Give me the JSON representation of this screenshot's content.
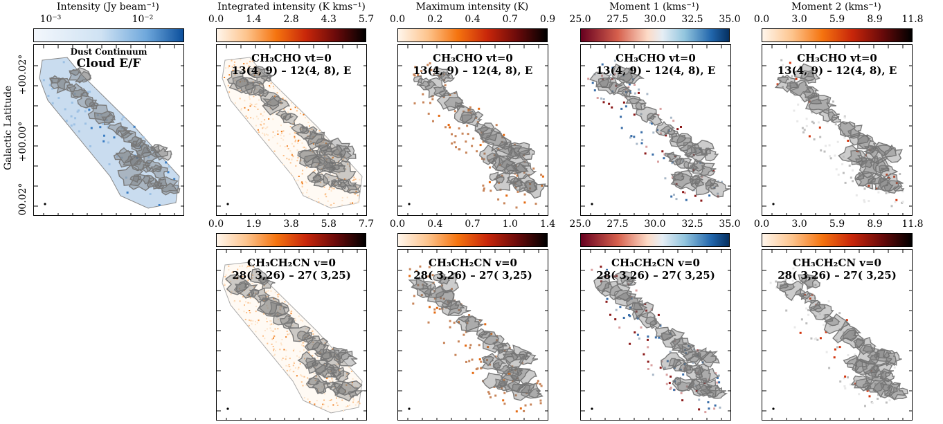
{
  "colorbars": {
    "dust": {
      "title": "Intensity (Jy beam⁻¹)",
      "ticks": [
        "10⁻³",
        "10⁻²"
      ]
    },
    "integrated": {
      "title": "Integrated intensity (K kms⁻¹)",
      "ticks_top": [
        "0.0",
        "1.4",
        "2.8",
        "4.3",
        "5.7"
      ],
      "ticks_bottom": [
        "0.0",
        "1.9",
        "3.8",
        "5.8",
        "7.7"
      ]
    },
    "maximum": {
      "title": "Maximum intensity (K)",
      "ticks_top": [
        "0.0",
        "0.2",
        "0.4",
        "0.7",
        "0.9"
      ],
      "ticks_bottom": [
        "0.0",
        "0.4",
        "0.7",
        "1.0",
        "1.4"
      ]
    },
    "moment1": {
      "title": "Moment 1 (kms⁻¹)",
      "ticks_top": [
        "25.0",
        "27.5",
        "30.0",
        "32.5",
        "35.0"
      ],
      "ticks_bottom": [
        "25.0",
        "27.5",
        "30.0",
        "32.5",
        "35.0"
      ]
    },
    "moment2": {
      "title": "Moment 2 (kms⁻¹)",
      "ticks_top": [
        "0.0",
        "3.0",
        "5.9",
        "8.9",
        "11.8"
      ],
      "ticks_bottom": [
        "0.0",
        "3.0",
        "5.9",
        "8.9",
        "11.8"
      ]
    }
  },
  "dust_panel": {
    "subtitle": "Dust Continuum",
    "title": "Cloud E/F"
  },
  "ylabel": "Galactic Latitude",
  "yticks": [
    "+00.02°",
    "+00.00°",
    "00.02°"
  ],
  "rows": [
    {
      "molecule": "CH₃CHO vt=0",
      "transition": "13(4, 9) – 12(4, 8), E"
    },
    {
      "molecule": "CH₃CH₂CN v=0",
      "transition": "28( 3,26) – 27( 3,25)"
    }
  ],
  "colors": {
    "dust_low": "#f2f6fb",
    "dust_high": "#0b4f9c",
    "orange": "#f07a18",
    "dark": "#000000",
    "red": "#8b1010",
    "blue": "#2166ac",
    "contour": "#7f7f7f"
  }
}
